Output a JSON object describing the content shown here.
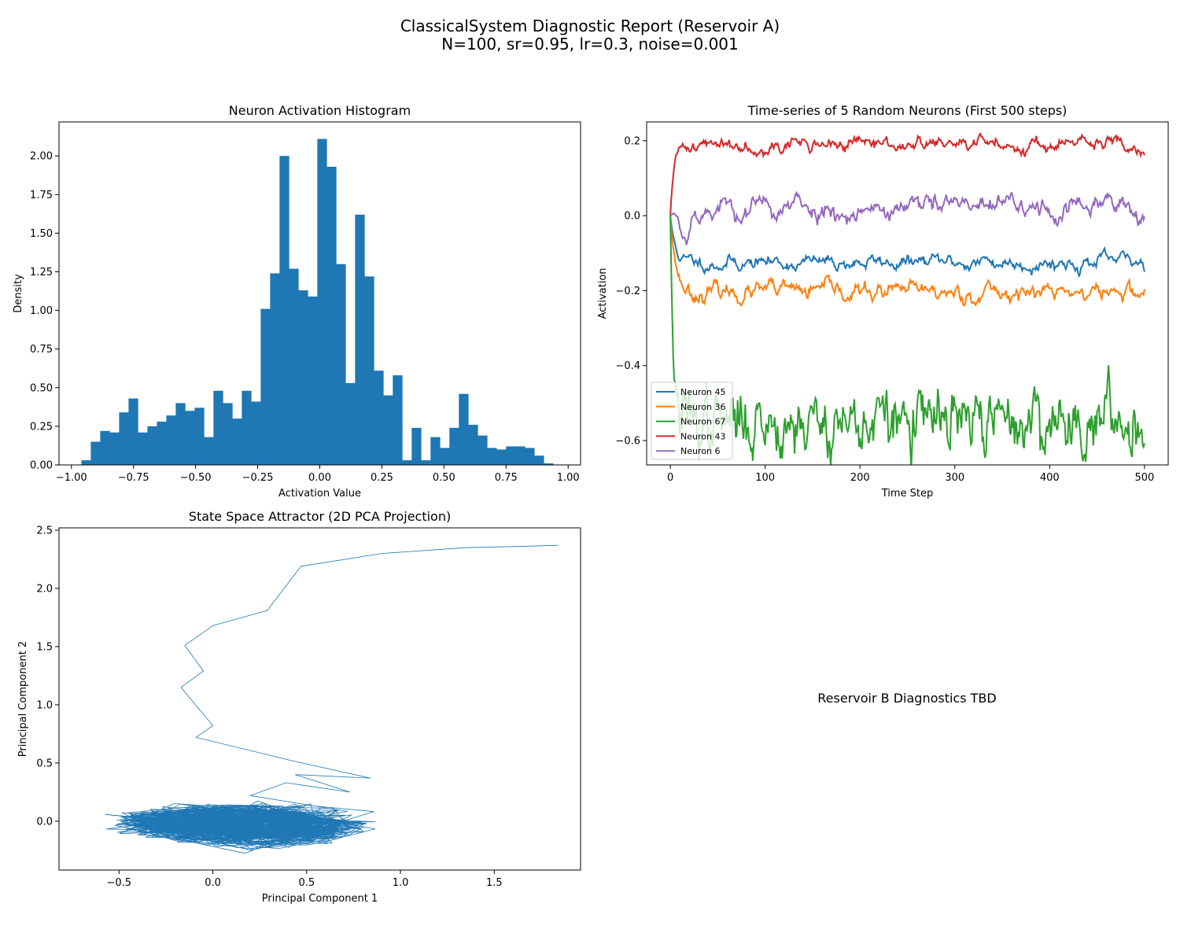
{
  "figure": {
    "title_line1": "ClassicalSystem Diagnostic Report (Reservoir A)",
    "title_line2": "N=100, sr=0.95, lr=0.3, noise=0.001",
    "placeholder_text": "Reservoir B Diagnostics TBD"
  },
  "colors": {
    "bar": "#1f77b4",
    "series": [
      "#1f77b4",
      "#ff7f0e",
      "#2ca02c",
      "#d62728",
      "#9467bd"
    ],
    "trajectory": "#1f77b4"
  },
  "chart_data": [
    {
      "type": "bar",
      "title": "Neuron Activation Histogram",
      "xlabel": "Activation Value",
      "ylabel": "Density",
      "xlim": [
        -1.05,
        1.05
      ],
      "ylim": [
        0,
        2.22
      ],
      "xticks": [
        -1.0,
        -0.75,
        -0.5,
        -0.25,
        0.0,
        0.25,
        0.5,
        0.75,
        1.0
      ],
      "xtick_labels": [
        "−1.00",
        "−0.75",
        "−0.50",
        "−0.25",
        "0.00",
        "0.25",
        "0.50",
        "0.75",
        "1.00"
      ],
      "yticks": [
        0.0,
        0.25,
        0.5,
        0.75,
        1.0,
        1.25,
        1.5,
        1.75,
        2.0
      ],
      "ytick_labels": [
        "0.00",
        "0.25",
        "0.50",
        "0.75",
        "1.00",
        "1.25",
        "1.50",
        "1.75",
        "2.00"
      ],
      "bin_start": -0.96,
      "bin_width": 0.038,
      "values": [
        0.03,
        0.15,
        0.22,
        0.21,
        0.34,
        0.43,
        0.21,
        0.25,
        0.28,
        0.32,
        0.4,
        0.35,
        0.37,
        0.18,
        0.48,
        0.4,
        0.3,
        0.48,
        0.41,
        1.01,
        1.24,
        2.0,
        1.27,
        1.13,
        1.09,
        2.11,
        1.93,
        1.3,
        0.53,
        1.62,
        1.22,
        0.61,
        0.45,
        0.58,
        0.03,
        0.24,
        0.03,
        0.18,
        0.11,
        0.24,
        0.46,
        0.26,
        0.19,
        0.11,
        0.1,
        0.12,
        0.12,
        0.11,
        0.06,
        0.01
      ]
    },
    {
      "type": "line",
      "title": "Time-series of 5 Random Neurons (First 500 steps)",
      "xlabel": "Time Step",
      "ylabel": "Activation",
      "xlim": [
        -25,
        525
      ],
      "ylim": [
        -0.665,
        0.25
      ],
      "xticks": [
        0,
        100,
        200,
        300,
        400,
        500
      ],
      "xtick_labels": [
        "0",
        "100",
        "200",
        "300",
        "400",
        "500"
      ],
      "yticks": [
        -0.6,
        -0.4,
        -0.2,
        0.0,
        0.2
      ],
      "ytick_labels": [
        "−0.6",
        "−0.4",
        "−0.2",
        "0.0",
        "0.2"
      ],
      "legend_position": "lower-left",
      "series": [
        {
          "name": "Neuron 45",
          "level": -0.125,
          "amp": 0.012,
          "tau": 6,
          "settle": 5,
          "seed": 11
        },
        {
          "name": "Neuron 36",
          "level": -0.205,
          "amp": 0.015,
          "tau": 6,
          "settle": 6,
          "seed": 23
        },
        {
          "name": "Neuron 67",
          "level": -0.55,
          "amp": 0.045,
          "tau": 2.5,
          "settle": 3,
          "seed": 37
        },
        {
          "name": "Neuron 43",
          "level": 0.19,
          "amp": 0.011,
          "tau": 5,
          "settle": 4,
          "seed": 41
        },
        {
          "name": "Neuron 6",
          "level": 0.02,
          "amp": 0.02,
          "tau": 7,
          "settle": 10,
          "seed": 53
        }
      ]
    },
    {
      "type": "line",
      "title": "State Space Attractor (2D PCA Projection)",
      "xlabel": "Principal Component 1",
      "ylabel": "Principal Component 2",
      "xlim": [
        -0.82,
        1.96
      ],
      "ylim": [
        -0.42,
        2.52
      ],
      "xticks": [
        -0.5,
        0.0,
        0.5,
        1.0,
        1.5
      ],
      "xtick_labels": [
        "−0.5",
        "0.0",
        "0.5",
        "1.0",
        "1.5"
      ],
      "yticks": [
        0.0,
        0.5,
        1.0,
        1.5,
        2.0,
        2.5
      ],
      "ytick_labels": [
        "0.0",
        "0.5",
        "1.0",
        "1.5",
        "2.0",
        "2.5"
      ],
      "transient": [
        [
          1.84,
          2.37
        ],
        [
          1.62,
          2.36
        ],
        [
          1.35,
          2.35
        ],
        [
          0.9,
          2.3
        ],
        [
          0.47,
          2.19
        ],
        [
          0.38,
          2.0
        ],
        [
          0.29,
          1.81
        ],
        [
          0.0,
          1.68
        ],
        [
          -0.15,
          1.51
        ],
        [
          -0.05,
          1.29
        ],
        [
          -0.17,
          1.15
        ],
        [
          0.0,
          0.82
        ],
        [
          -0.09,
          0.72
        ],
        [
          0.42,
          0.52
        ],
        [
          0.84,
          0.37
        ],
        [
          0.44,
          0.4
        ],
        [
          0.73,
          0.25
        ],
        [
          0.39,
          0.33
        ],
        [
          0.2,
          0.22
        ]
      ],
      "attractor": {
        "cx": 0.15,
        "cy": -0.03,
        "rx": 0.62,
        "ry": 0.14,
        "tilt": -0.1,
        "xmin": -0.68,
        "xmax": 1.3,
        "ymin": -0.29,
        "ymax": 0.23,
        "points": 1200,
        "seed": 7
      }
    }
  ]
}
